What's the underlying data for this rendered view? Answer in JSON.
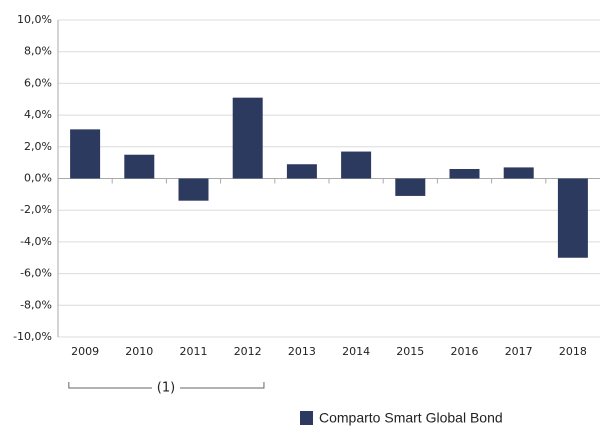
{
  "chart_data": {
    "type": "bar",
    "categories": [
      "2009",
      "2010",
      "2011",
      "2012",
      "2013",
      "2014",
      "2015",
      "2016",
      "2017",
      "2018"
    ],
    "series": [
      {
        "name": "Comparto Smart Global Bond",
        "color": "#2d3a60",
        "values": [
          3.1,
          1.5,
          -1.4,
          5.1,
          0.9,
          1.7,
          -1.1,
          0.6,
          0.7,
          -5.0
        ]
      }
    ],
    "ylim": [
      -10,
      10
    ],
    "yticks": [
      {
        "value": -10,
        "label": "-10,0%"
      },
      {
        "value": -8,
        "label": "-8,0%"
      },
      {
        "value": -6,
        "label": "-6,0%"
      },
      {
        "value": -4,
        "label": "-4,0%"
      },
      {
        "value": -2,
        "label": "-2,0%"
      },
      {
        "value": 0,
        "label": "0,0%"
      },
      {
        "value": 2,
        "label": "2,0%"
      },
      {
        "value": 4,
        "label": "4,0%"
      },
      {
        "value": 6,
        "label": "6,0%"
      },
      {
        "value": 8,
        "label": "8,0%"
      },
      {
        "value": 10,
        "label": "10,0%"
      }
    ],
    "grid": true,
    "annotation": "(1)",
    "legend": "bottom"
  }
}
